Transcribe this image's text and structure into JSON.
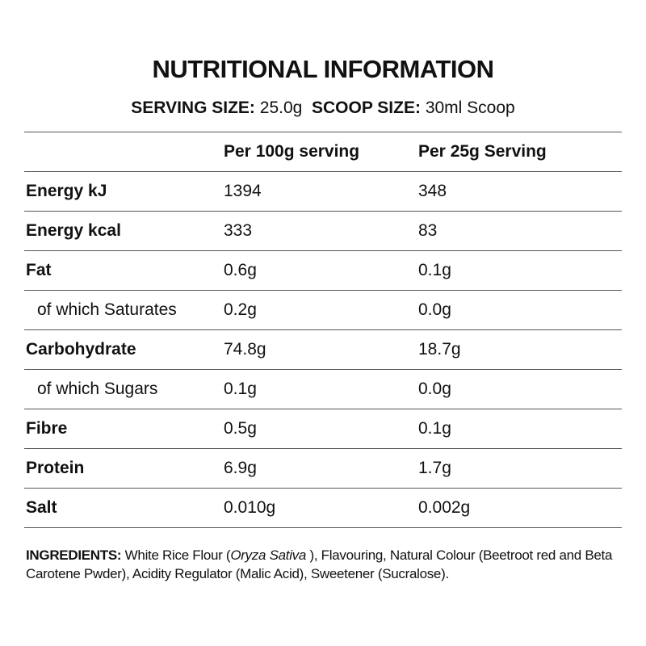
{
  "title": "NUTRITIONAL INFORMATION",
  "serving": {
    "serving_label": "SERVING SIZE:",
    "serving_value": "25.0g",
    "scoop_label": "SCOOP SIZE:",
    "scoop_value": "30ml Scoop"
  },
  "table": {
    "header": [
      "Per 100g serving",
      "Per 25g Serving"
    ],
    "rows": [
      [
        "Energy kJ",
        "1394",
        "348"
      ],
      [
        "Energy kcal",
        "333",
        "83"
      ],
      [
        "Fat",
        "0.6g",
        "0.1g"
      ],
      [
        "of which Saturates",
        "0.2g",
        "0.0g"
      ],
      [
        "Carbohydrate",
        "74.8g",
        "18.7g"
      ],
      [
        "of which Sugars",
        "0.1g",
        "0.0g"
      ],
      [
        "Fibre",
        "0.5g",
        "0.1g"
      ],
      [
        "Protein",
        "6.9g",
        "1.7g"
      ],
      [
        "Salt",
        "0.010g",
        "0.002g"
      ]
    ]
  },
  "ingredients": {
    "label": "INGREDIENTS:",
    "text_before": " White Rice Flour (",
    "italic": "Oryza Sativa",
    "text_after": " ), Flavouring, Natural Colour (Beetroot red and Beta Carotene Pwder), Acidity Regulator (Malic Acid), Sweetener (Sucralose)."
  }
}
